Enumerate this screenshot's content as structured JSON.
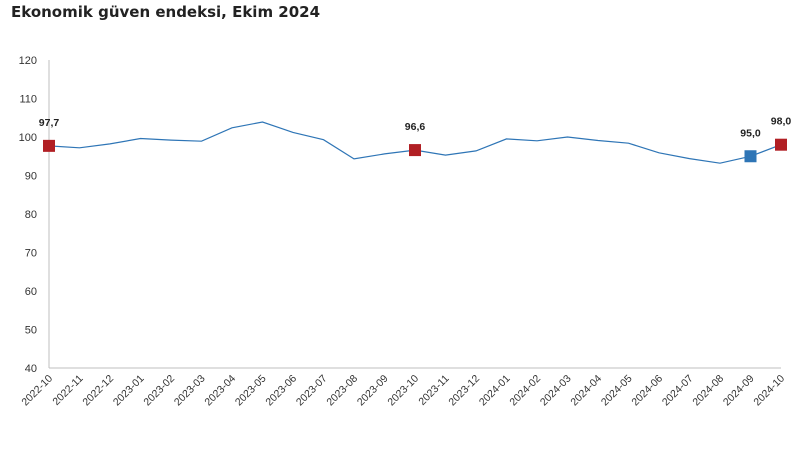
{
  "chart_data": {
    "type": "line",
    "title": "Ekonomik güven endeksi, Ekim 2024",
    "xlabel": "",
    "ylabel": "",
    "ylim": [
      40,
      120
    ],
    "yticks": [
      40,
      50,
      60,
      70,
      80,
      90,
      100,
      110,
      120
    ],
    "grid": false,
    "legend": "none",
    "categories": [
      "2022-10",
      "2022-11",
      "2022-12",
      "2023-01",
      "2023-02",
      "2023-03",
      "2023-04",
      "2023-05",
      "2023-06",
      "2023-07",
      "2023-08",
      "2023-09",
      "2023-10",
      "2023-11",
      "2023-12",
      "2024-01",
      "2024-02",
      "2024-03",
      "2024-04",
      "2024-05",
      "2024-06",
      "2024-07",
      "2024-08",
      "2024-09",
      "2024-10"
    ],
    "series": [
      {
        "name": "",
        "values": [
          97.7,
          97.2,
          98.2,
          99.6,
          99.2,
          98.9,
          102.4,
          103.9,
          101.2,
          99.3,
          94.3,
          95.6,
          96.6,
          95.3,
          96.4,
          99.5,
          99.0,
          100.0,
          99.1,
          98.4,
          95.9,
          94.4,
          93.2,
          95.0,
          98.0
        ],
        "color": "#2e75b6"
      }
    ],
    "highlights": [
      {
        "index": 0,
        "label": "97,7",
        "color": "#b11f24"
      },
      {
        "index": 12,
        "label": "96,6",
        "color": "#b11f24"
      },
      {
        "index": 23,
        "label": "95,0",
        "color": "#2e75b6"
      },
      {
        "index": 24,
        "label": "98,0",
        "color": "#b11f24"
      }
    ]
  }
}
